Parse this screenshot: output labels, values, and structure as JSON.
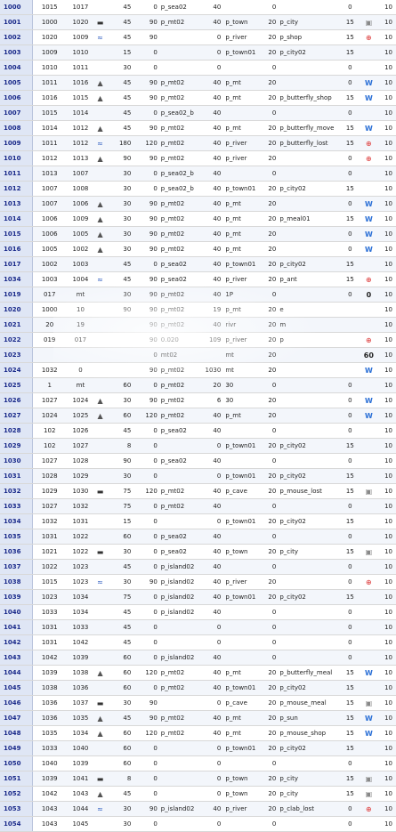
{
  "colors": {
    "row_header_bg": "#dfe6f5",
    "row_header_text": "#1a2a8a",
    "stripe": "#f3f6fb",
    "grid": "#d8d8d8"
  },
  "icon_map": {
    "boat": "▬",
    "mt": "▲",
    "river": "≈",
    "W": "W",
    "shop": "⊕",
    "city": "▣"
  },
  "rows": [
    [
      "1000",
      "1015",
      "1017",
      "",
      "45",
      "0",
      "p_sea02",
      "40",
      "",
      "0",
      "",
      "0",
      "",
      "10"
    ],
    [
      "1001",
      "1000",
      "1020",
      "boat",
      "45",
      "90",
      "p_mt02",
      "40",
      "p_town",
      "20",
      "p_city",
      "15",
      "city",
      "10"
    ],
    [
      "1002",
      "1020",
      "1009",
      "river",
      "45",
      "90",
      "",
      "0",
      "p_river",
      "20",
      "p_shop",
      "15",
      "shop",
      "10"
    ],
    [
      "1003",
      "1009",
      "1010",
      "",
      "15",
      "0",
      "",
      "0",
      "p_town01",
      "20",
      "p_city02",
      "15",
      "",
      "10"
    ],
    [
      "1004",
      "1010",
      "1011",
      "",
      "30",
      "0",
      "",
      "0",
      "",
      "0",
      "",
      "0",
      "",
      "10"
    ],
    [
      "1005",
      "1011",
      "1016",
      "mt",
      "45",
      "90",
      "p_mt02",
      "40",
      "p_mt",
      "20",
      "",
      "0",
      "W",
      "10"
    ],
    [
      "1006",
      "1016",
      "1015",
      "mt",
      "45",
      "90",
      "p_mt02",
      "40",
      "p_mt",
      "20",
      "p_butterfly_shop",
      "15",
      "W",
      "10"
    ],
    [
      "1007",
      "1015",
      "1014",
      "",
      "45",
      "0",
      "p_sea02_b",
      "40",
      "",
      "0",
      "",
      "0",
      "",
      "10"
    ],
    [
      "1008",
      "1014",
      "1012",
      "mt",
      "45",
      "90",
      "p_mt02",
      "40",
      "p_mt",
      "20",
      "p_butterfly_move",
      "15",
      "W",
      "10"
    ],
    [
      "1009",
      "1011",
      "1012",
      "river",
      "180",
      "120",
      "p_mt02",
      "40",
      "p_river",
      "20",
      "p_butterfly_lost",
      "15",
      "shop",
      "10"
    ],
    [
      "1010",
      "1012",
      "1013",
      "mt",
      "90",
      "90",
      "p_mt02",
      "40",
      "p_river",
      "20",
      "",
      "0",
      "shop",
      "10"
    ],
    [
      "1011",
      "1013",
      "1007",
      "",
      "30",
      "0",
      "p_sea02_b",
      "40",
      "",
      "0",
      "",
      "0",
      "",
      "10"
    ],
    [
      "1012",
      "1007",
      "1008",
      "",
      "30",
      "0",
      "p_sea02_b",
      "40",
      "p_town01",
      "20",
      "p_city02",
      "15",
      "",
      "10"
    ],
    [
      "1013",
      "1007",
      "1006",
      "mt",
      "30",
      "90",
      "p_mt02",
      "40",
      "p_mt",
      "20",
      "",
      "0",
      "W",
      "10"
    ],
    [
      "1014",
      "1006",
      "1009",
      "mt",
      "30",
      "90",
      "p_mt02",
      "40",
      "p_mt",
      "20",
      "p_meal01",
      "15",
      "W",
      "10"
    ],
    [
      "1015",
      "1006",
      "1005",
      "mt",
      "30",
      "90",
      "p_mt02",
      "40",
      "p_mt",
      "20",
      "",
      "0",
      "W",
      "10"
    ],
    [
      "1016",
      "1005",
      "1002",
      "mt",
      "30",
      "90",
      "p_mt02",
      "40",
      "p_mt",
      "20",
      "",
      "0",
      "W",
      "10"
    ],
    [
      "1017",
      "1002",
      "1003",
      "",
      "45",
      "0",
      "p_sea02",
      "40",
      "p_town01",
      "20",
      "p_city02",
      "15",
      "",
      "10"
    ],
    [
      "1034",
      "1003",
      "1004",
      "river",
      "45",
      "90",
      "p_sea02",
      "40",
      "p_river",
      "20",
      "p_ant",
      "15",
      "shop",
      "10"
    ],
    [
      "1019",
      "017",
      "mt",
      "",
      "30",
      "90",
      "p_mt02",
      "40",
      "1P",
      "0",
      "",
      "0",
      "0",
      "10"
    ],
    [
      "1020",
      "1000",
      "10",
      "",
      "90",
      "90",
      "p_mt02",
      "19",
      "p_mt",
      "20",
      "e",
      "",
      "",
      "10"
    ],
    [
      "1021",
      "20",
      "19",
      "",
      "",
      "90",
      "p_mt02",
      "40",
      "rivr",
      "20",
      "m",
      "",
      "",
      "10"
    ],
    [
      "1022",
      "019",
      "017",
      "",
      "",
      "90",
      "0.020",
      "109",
      "p_river",
      "20",
      "p",
      "",
      "shop",
      "10"
    ],
    [
      "1023",
      "",
      "",
      "",
      "",
      "0",
      "mt02",
      "",
      "mt",
      "20",
      "",
      "",
      "60",
      "10"
    ],
    [
      "1024",
      "1032",
      "0",
      "",
      "",
      "90",
      "p_mt02",
      "1030",
      "mt",
      "20",
      "",
      "",
      "W",
      "10"
    ],
    [
      "1025",
      "1",
      "mt",
      "",
      "60",
      "0",
      "p_mt02",
      "20",
      "30",
      "0",
      "",
      "0",
      "",
      "10"
    ],
    [
      "1026",
      "1027",
      "1024",
      "mt",
      "30",
      "90",
      "p_mt02",
      "6",
      "30",
      "20",
      "",
      "0",
      "W",
      "10"
    ],
    [
      "1027",
      "1024",
      "1025",
      "mt",
      "60",
      "120",
      "p_mt02",
      "40",
      "p_mt",
      "20",
      "",
      "0",
      "W",
      "10"
    ],
    [
      "1028",
      "102",
      "1026",
      "",
      "45",
      "0",
      "p_sea02",
      "40",
      "",
      "0",
      "",
      "0",
      "",
      "10"
    ],
    [
      "1029",
      "102",
      "1027",
      "",
      "8",
      "0",
      "",
      "0",
      "p_town01",
      "20",
      "p_city02",
      "15",
      "",
      "10"
    ],
    [
      "1030",
      "1027",
      "1028",
      "",
      "90",
      "0",
      "p_sea02",
      "40",
      "",
      "0",
      "",
      "0",
      "",
      "10"
    ],
    [
      "1031",
      "1028",
      "1029",
      "",
      "30",
      "0",
      "",
      "0",
      "p_town01",
      "20",
      "p_city02",
      "15",
      "",
      "10"
    ],
    [
      "1032",
      "1029",
      "1030",
      "boat",
      "75",
      "120",
      "p_mt02",
      "40",
      "p_cave",
      "20",
      "p_mouse_lost",
      "15",
      "city",
      "10"
    ],
    [
      "1033",
      "1027",
      "1032",
      "",
      "75",
      "0",
      "p_mt02",
      "40",
      "",
      "0",
      "",
      "0",
      "",
      "10"
    ],
    [
      "1034",
      "1032",
      "1031",
      "",
      "15",
      "0",
      "",
      "0",
      "p_town01",
      "20",
      "p_city02",
      "15",
      "",
      "10"
    ],
    [
      "1035",
      "1031",
      "1022",
      "",
      "60",
      "0",
      "p_sea02",
      "40",
      "",
      "0",
      "",
      "0",
      "",
      "10"
    ],
    [
      "1036",
      "1021",
      "1022",
      "boat",
      "30",
      "0",
      "p_sea02",
      "40",
      "p_town",
      "20",
      "p_city",
      "15",
      "city",
      "10"
    ],
    [
      "1037",
      "1022",
      "1023",
      "",
      "45",
      "0",
      "p_island02",
      "40",
      "",
      "0",
      "",
      "0",
      "",
      "10"
    ],
    [
      "1038",
      "1015",
      "1023",
      "river",
      "30",
      "90",
      "p_island02",
      "40",
      "p_river",
      "20",
      "",
      "0",
      "shop",
      "10"
    ],
    [
      "1039",
      "1023",
      "1034",
      "",
      "75",
      "0",
      "p_island02",
      "40",
      "p_town01",
      "20",
      "p_city02",
      "15",
      "",
      "10"
    ],
    [
      "1040",
      "1033",
      "1034",
      "",
      "45",
      "0",
      "p_island02",
      "40",
      "",
      "0",
      "",
      "0",
      "",
      "10"
    ],
    [
      "1041",
      "1031",
      "1033",
      "",
      "45",
      "0",
      "",
      "0",
      "",
      "0",
      "",
      "0",
      "",
      "10"
    ],
    [
      "1042",
      "1031",
      "1042",
      "",
      "45",
      "0",
      "",
      "0",
      "",
      "0",
      "",
      "0",
      "",
      "10"
    ],
    [
      "1043",
      "1042",
      "1039",
      "",
      "60",
      "0",
      "p_island02",
      "40",
      "",
      "0",
      "",
      "0",
      "",
      "10"
    ],
    [
      "1044",
      "1039",
      "1038",
      "mt",
      "60",
      "120",
      "p_mt02",
      "40",
      "p_mt",
      "20",
      "p_butterfly_meal",
      "15",
      "W",
      "10"
    ],
    [
      "1045",
      "1038",
      "1036",
      "",
      "60",
      "0",
      "p_mt02",
      "40",
      "p_town01",
      "20",
      "p_city02",
      "15",
      "",
      "10"
    ],
    [
      "1046",
      "1036",
      "1037",
      "boat",
      "30",
      "90",
      "",
      "0",
      "p_cave",
      "20",
      "p_mouse_meal",
      "15",
      "city",
      "10"
    ],
    [
      "1047",
      "1036",
      "1035",
      "mt",
      "45",
      "90",
      "p_mt02",
      "40",
      "p_mt",
      "20",
      "p_sun",
      "15",
      "W",
      "10"
    ],
    [
      "1048",
      "1035",
      "1034",
      "mt",
      "60",
      "120",
      "p_mt02",
      "40",
      "p_mt",
      "20",
      "p_mouse_shop",
      "15",
      "W",
      "10"
    ],
    [
      "1049",
      "1033",
      "1040",
      "",
      "60",
      "0",
      "",
      "0",
      "p_town01",
      "20",
      "p_city02",
      "15",
      "",
      "10"
    ],
    [
      "1050",
      "1040",
      "1039",
      "",
      "60",
      "0",
      "",
      "0",
      "",
      "0",
      "",
      "0",
      "",
      "10"
    ],
    [
      "1051",
      "1039",
      "1041",
      "boat",
      "8",
      "0",
      "",
      "0",
      "p_town",
      "20",
      "p_city",
      "15",
      "city",
      "10"
    ],
    [
      "1052",
      "1042",
      "1043",
      "mt",
      "45",
      "0",
      "",
      "0",
      "p_town",
      "20",
      "p_city",
      "15",
      "city",
      "10"
    ],
    [
      "1053",
      "1043",
      "1044",
      "river",
      "30",
      "90",
      "p_island02",
      "40",
      "p_river",
      "20",
      "p_clab_lost",
      "0",
      "shop",
      "10"
    ],
    [
      "1054",
      "1043",
      "1045",
      "",
      "30",
      "0",
      "",
      "0",
      "",
      "0",
      "",
      "0",
      "",
      "10"
    ]
  ]
}
